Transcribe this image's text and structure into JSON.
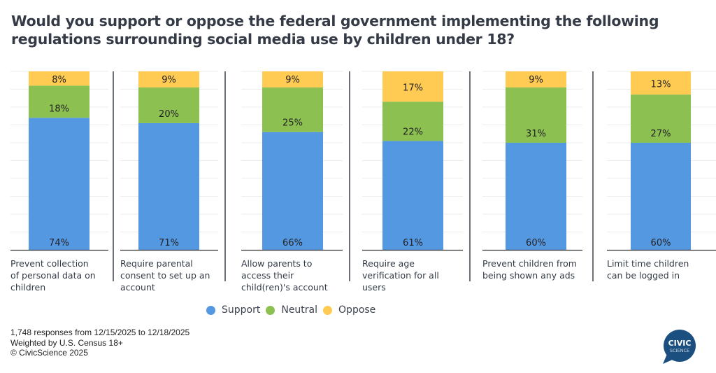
{
  "title": "Would you support or oppose the federal government implementing the following regulations surrounding social media use by children under 18?",
  "colors": {
    "support": "#5598e2",
    "neutral": "#8cc152",
    "oppose": "#ffcb52",
    "gridline": "#ececec",
    "separator": "#6b7079",
    "baseline": "#333333",
    "title": "#343a46",
    "logo": "#1b4f7f"
  },
  "legend": [
    {
      "key": "support",
      "label": "Support"
    },
    {
      "key": "neutral",
      "label": "Neutral"
    },
    {
      "key": "oppose",
      "label": "Oppose"
    }
  ],
  "footnote": {
    "line1": "1,748 responses from 12/15/2025 to 12/18/2025",
    "line2": "Weighted by U.S. Census 18+",
    "line3": "© CivicScience 2025"
  },
  "logo": {
    "line1": "CIVIC",
    "line2": "SCIENCE"
  },
  "chart_data": {
    "type": "bar",
    "stacked": true,
    "title": "Would you support or oppose the federal government implementing the following regulations surrounding social media use by children under 18?",
    "xlabel": "",
    "ylabel": "",
    "ylim": [
      0,
      100
    ],
    "grid": true,
    "legend_position": "bottom",
    "categories": [
      "Prevent collection of personal data on children",
      "Require parental consent to set up an account",
      "Allow parents to access their child(ren)'s account",
      "Require age verification for all users",
      "Prevent children from being shown any ads",
      "Limit time children can be logged in"
    ],
    "category_lines": [
      [
        "Prevent collection",
        "of personal data on",
        "children"
      ],
      [
        "Require parental",
        "consent to set up an",
        "account"
      ],
      [
        "Allow parents to",
        "access their",
        "child(ren)'s account"
      ],
      [
        "Require age",
        "verification for all",
        "users"
      ],
      [
        "Prevent children from",
        "being shown any ads"
      ],
      [
        "Limit time children",
        "can be logged in"
      ]
    ],
    "series": [
      {
        "name": "Support",
        "values": [
          74,
          71,
          66,
          61,
          60,
          60
        ]
      },
      {
        "name": "Neutral",
        "values": [
          18,
          20,
          25,
          22,
          31,
          27
        ]
      },
      {
        "name": "Oppose",
        "values": [
          8,
          9,
          9,
          17,
          9,
          13
        ]
      }
    ],
    "value_labels": {
      "Support": [
        "74%",
        "71%",
        "66%",
        "61%",
        "60%",
        "60%"
      ],
      "Neutral": [
        "18%",
        "20%",
        "25%",
        "22%",
        "31%",
        "27%"
      ],
      "Oppose": [
        "8%",
        "9%",
        "9%",
        "17%",
        "9%",
        "13%"
      ]
    }
  }
}
